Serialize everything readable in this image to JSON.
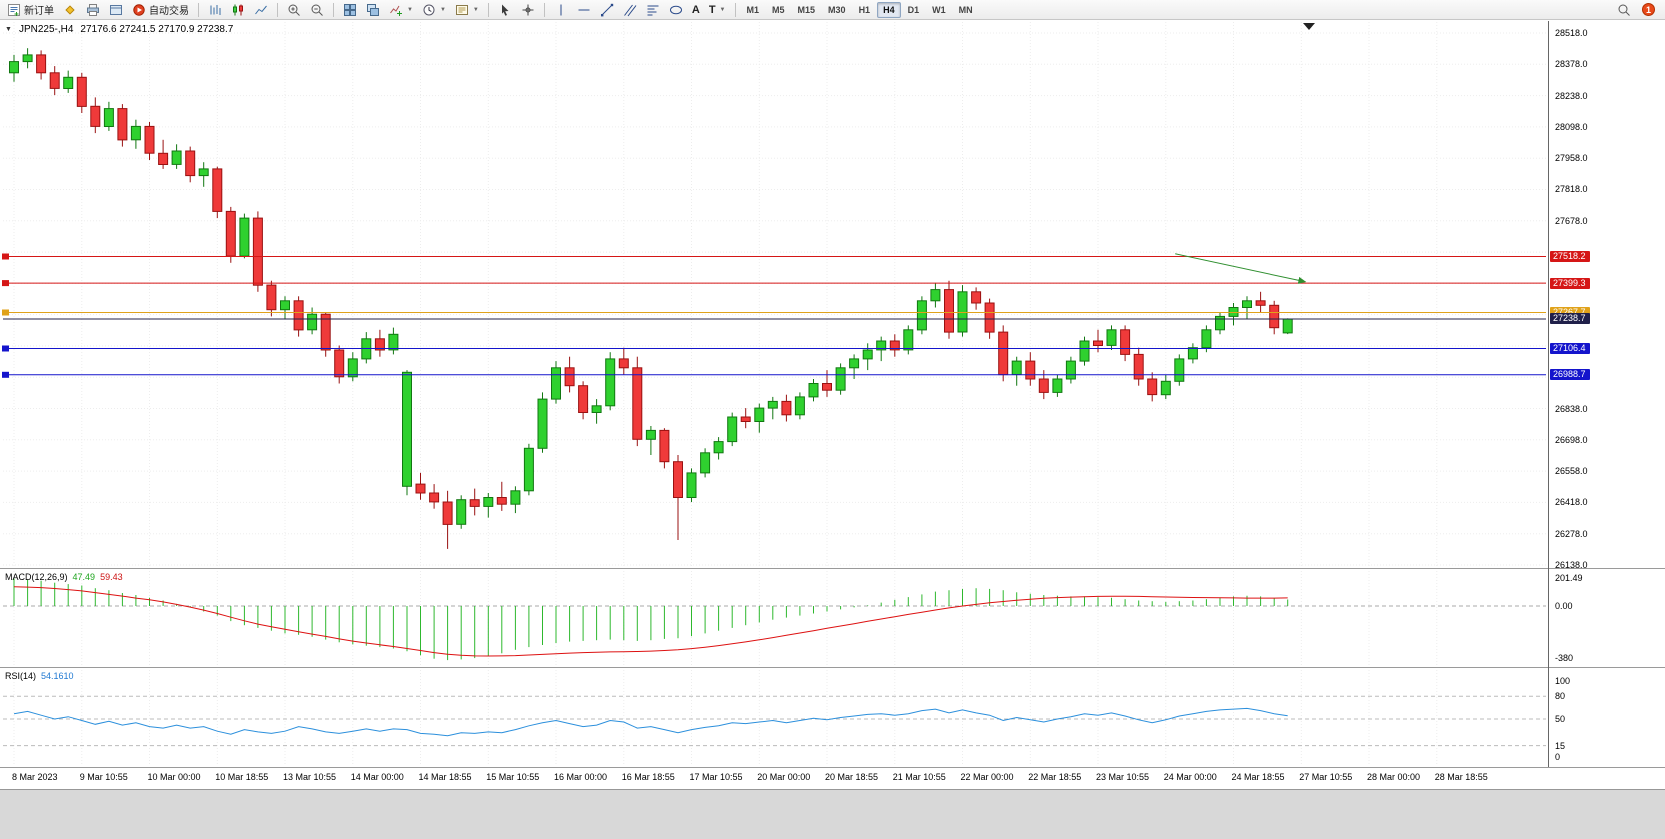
{
  "toolbar": {
    "new_order_label": "新订单",
    "auto_trading_label": "自动交易",
    "text_tool_label": "A",
    "arrows_tool_label": "T",
    "timeframes": [
      "M1",
      "M5",
      "M15",
      "M30",
      "H1",
      "H4",
      "D1",
      "W1",
      "MN"
    ],
    "active_timeframe": "H4",
    "notification_count": "1"
  },
  "chart": {
    "symbol_period": "JPN225-,H4",
    "ohlc": "27176.6 27241.5 27170.9 27238.7"
  },
  "indicators": {
    "macd": {
      "label": "MACD(12,26,9)",
      "value_main": "47.49",
      "value_signal": "59.43",
      "scale": [
        {
          "text": "201.49",
          "value": 201.49
        },
        {
          "text": "0.00",
          "value": 0
        },
        {
          "text": "-380",
          "value": -380
        }
      ]
    },
    "rsi": {
      "label": "RSI(14)",
      "value": "54.1610",
      "scale": [
        {
          "text": "100",
          "value": 100
        },
        {
          "text": "80",
          "value": 80
        },
        {
          "text": "50",
          "value": 50
        },
        {
          "text": "15",
          "value": 15
        },
        {
          "text": "0",
          "value": 0
        }
      ]
    }
  },
  "price_scale": {
    "plain": [
      28518.0,
      28378.0,
      28238.0,
      28098.0,
      27958.0,
      27818.0,
      27678.0,
      26838.0,
      26698.0,
      26558.0,
      26418.0,
      26278.0,
      26138.0
    ],
    "badges": [
      {
        "value": "27518.2",
        "price": 27518.2,
        "color": "#d51616"
      },
      {
        "value": "27399.3",
        "price": 27399.3,
        "color": "#d51616"
      },
      {
        "value": "27267.7",
        "price": 27267.7,
        "color": "#e0a21a"
      },
      {
        "value": "27238.7",
        "price": 27238.7,
        "color": "#20204a"
      },
      {
        "value": "27106.4",
        "price": 27106.4,
        "color": "#1414cc"
      },
      {
        "value": "26988.7",
        "price": 26988.7,
        "color": "#1414cc"
      }
    ]
  },
  "time_axis": {
    "labels": [
      {
        "text": "8 Mar 2023",
        "ci": 0
      },
      {
        "text": "9 Mar 10:55",
        "ci": 5
      },
      {
        "text": "10 Mar 00:00",
        "ci": 10
      },
      {
        "text": "10 Mar 18:55",
        "ci": 15
      },
      {
        "text": "13 Mar 10:55",
        "ci": 20
      },
      {
        "text": "14 Mar 00:00",
        "ci": 25
      },
      {
        "text": "14 Mar 18:55",
        "ci": 30
      },
      {
        "text": "15 Mar 10:55",
        "ci": 35
      },
      {
        "text": "16 Mar 00:00",
        "ci": 40
      },
      {
        "text": "16 Mar 18:55",
        "ci": 45
      },
      {
        "text": "17 Mar 10:55",
        "ci": 50
      },
      {
        "text": "20 Mar 00:00",
        "ci": 55
      },
      {
        "text": "20 Mar 18:55",
        "ci": 60
      },
      {
        "text": "21 Mar 10:55",
        "ci": 65
      },
      {
        "text": "22 Mar 00:00",
        "ci": 70
      },
      {
        "text": "22 Mar 18:55",
        "ci": 75
      },
      {
        "text": "23 Mar 10:55",
        "ci": 80
      },
      {
        "text": "24 Mar 00:00",
        "ci": 85
      },
      {
        "text": "24 Mar 18:55",
        "ci": 90
      },
      {
        "text": "27 Mar 10:55",
        "ci": 95
      },
      {
        "text": "28 Mar 00:00",
        "ci": 100
      },
      {
        "text": "28 Mar 18:55",
        "ci": 105
      }
    ]
  },
  "chart_data": [
    {
      "type": "candlestick",
      "symbol": "JPN225-",
      "timeframe": "H4",
      "last_ohlc": {
        "open": 27176.6,
        "high": 27241.5,
        "low": 27170.9,
        "close": 27238.7
      },
      "ylim": [
        26138,
        28560
      ],
      "grid": {
        "min": 26138,
        "max": 28518,
        "step": 140
      },
      "hlines": [
        {
          "price": 27518.2,
          "color": "#d51616",
          "width": 1,
          "marker": true
        },
        {
          "price": 27399.3,
          "color": "#d51616",
          "width": 1,
          "marker": true
        },
        {
          "price": 27267.7,
          "color": "#e0a21a",
          "width": 2,
          "marker": true
        },
        {
          "price": 27238.7,
          "color": "#20204a",
          "width": 1,
          "marker": false
        },
        {
          "price": 27106.4,
          "color": "#1414cc",
          "width": 2,
          "marker": true
        },
        {
          "price": 26988.7,
          "color": "#1414cc",
          "width": 2,
          "marker": true
        }
      ],
      "arrow": {
        "from_ci": 85.7,
        "from_price": 27530,
        "to_ci": 95.3,
        "to_price": 27405,
        "color": "#2f8f2f"
      },
      "candles": [
        [
          28340,
          28420,
          28300,
          28390
        ],
        [
          28390,
          28450,
          28360,
          28420
        ],
        [
          28420,
          28440,
          28310,
          28340
        ],
        [
          28340,
          28370,
          28240,
          28270
        ],
        [
          28270,
          28350,
          28250,
          28320
        ],
        [
          28320,
          28340,
          28160,
          28190
        ],
        [
          28190,
          28230,
          28070,
          28100
        ],
        [
          28100,
          28210,
          28080,
          28180
        ],
        [
          28180,
          28200,
          28010,
          28040
        ],
        [
          28040,
          28130,
          28000,
          28100
        ],
        [
          28100,
          28120,
          27950,
          27980
        ],
        [
          27980,
          28040,
          27910,
          27930
        ],
        [
          27930,
          28020,
          27910,
          27990
        ],
        [
          27990,
          28010,
          27850,
          27880
        ],
        [
          27880,
          27940,
          27830,
          27910
        ],
        [
          27910,
          27920,
          27690,
          27720
        ],
        [
          27720,
          27740,
          27490,
          27520
        ],
        [
          27520,
          27710,
          27510,
          27690
        ],
        [
          27690,
          27720,
          27360,
          27390
        ],
        [
          27390,
          27410,
          27250,
          27280
        ],
        [
          27280,
          27340,
          27240,
          27320
        ],
        [
          27320,
          27340,
          27160,
          27190
        ],
        [
          27190,
          27290,
          27170,
          27260
        ],
        [
          27260,
          27270,
          27070,
          27100
        ],
        [
          27100,
          27120,
          26950,
          26980
        ],
        [
          26980,
          27090,
          26960,
          27060
        ],
        [
          27060,
          27180,
          27040,
          27150
        ],
        [
          27150,
          27190,
          27070,
          27100
        ],
        [
          27100,
          27200,
          27080,
          27170
        ],
        [
          26490,
          27010,
          26450,
          27000
        ],
        [
          26500,
          26550,
          26430,
          26460
        ],
        [
          26460,
          26500,
          26390,
          26420
        ],
        [
          26420,
          26470,
          26210,
          26320
        ],
        [
          26320,
          26450,
          26300,
          26430
        ],
        [
          26430,
          26480,
          26360,
          26400
        ],
        [
          26400,
          26460,
          26350,
          26440
        ],
        [
          26440,
          26510,
          26380,
          26410
        ],
        [
          26410,
          26490,
          26370,
          26470
        ],
        [
          26470,
          26680,
          26450,
          26660
        ],
        [
          26660,
          26910,
          26640,
          26880
        ],
        [
          26880,
          27050,
          26860,
          27020
        ],
        [
          27020,
          27070,
          26910,
          26940
        ],
        [
          26940,
          26960,
          26790,
          26820
        ],
        [
          26820,
          26880,
          26770,
          26850
        ],
        [
          26850,
          27090,
          26830,
          27060
        ],
        [
          27060,
          27110,
          26990,
          27020
        ],
        [
          27020,
          27070,
          26670,
          26700
        ],
        [
          26700,
          26760,
          26630,
          26740
        ],
        [
          26740,
          26750,
          26570,
          26600
        ],
        [
          26600,
          26630,
          26250,
          26440
        ],
        [
          26440,
          26570,
          26420,
          26550
        ],
        [
          26550,
          26660,
          26530,
          26640
        ],
        [
          26640,
          26710,
          26610,
          26690
        ],
        [
          26690,
          26820,
          26670,
          26800
        ],
        [
          26800,
          26840,
          26750,
          26780
        ],
        [
          26780,
          26860,
          26730,
          26840
        ],
        [
          26840,
          26890,
          26790,
          26870
        ],
        [
          26870,
          26900,
          26780,
          26810
        ],
        [
          26810,
          26910,
          26790,
          26890
        ],
        [
          26890,
          26970,
          26870,
          26950
        ],
        [
          26950,
          27010,
          26890,
          26920
        ],
        [
          26920,
          27040,
          26900,
          27020
        ],
        [
          27020,
          27080,
          26970,
          27060
        ],
        [
          27060,
          27130,
          27010,
          27100
        ],
        [
          27100,
          27160,
          27050,
          27140
        ],
        [
          27140,
          27170,
          27070,
          27100
        ],
        [
          27100,
          27210,
          27080,
          27190
        ],
        [
          27190,
          27340,
          27170,
          27320
        ],
        [
          27320,
          27400,
          27290,
          27370
        ],
        [
          27370,
          27410,
          27150,
          27180
        ],
        [
          27180,
          27390,
          27160,
          27360
        ],
        [
          27360,
          27380,
          27280,
          27310
        ],
        [
          27310,
          27330,
          27150,
          27180
        ],
        [
          27180,
          27210,
          26960,
          26990
        ],
        [
          26990,
          27070,
          26940,
          27050
        ],
        [
          27050,
          27090,
          26940,
          26970
        ],
        [
          26970,
          27010,
          26880,
          26910
        ],
        [
          26910,
          26990,
          26890,
          26970
        ],
        [
          26970,
          27070,
          26950,
          27050
        ],
        [
          27050,
          27160,
          27030,
          27140
        ],
        [
          27140,
          27190,
          27090,
          27120
        ],
        [
          27120,
          27210,
          27100,
          27190
        ],
        [
          27190,
          27210,
          27050,
          27080
        ],
        [
          27080,
          27110,
          26940,
          26970
        ],
        [
          26970,
          27000,
          26870,
          26900
        ],
        [
          26900,
          26990,
          26880,
          26960
        ],
        [
          26960,
          27080,
          26940,
          27060
        ],
        [
          27060,
          27130,
          27040,
          27110
        ],
        [
          27110,
          27210,
          27090,
          27190
        ],
        [
          27190,
          27270,
          27170,
          27250
        ],
        [
          27250,
          27310,
          27210,
          27290
        ],
        [
          27290,
          27340,
          27240,
          27320
        ],
        [
          27320,
          27360,
          27270,
          27300
        ],
        [
          27300,
          27320,
          27170,
          27200
        ],
        [
          27176.6,
          27241.5,
          27170.9,
          27238.7
        ]
      ]
    },
    {
      "type": "bar",
      "name": "MACD(12,26,9)",
      "current_macd": 47.49,
      "current_signal": 59.43,
      "ylim": [
        -420,
        215
      ],
      "levels": [
        0
      ],
      "values": [
        200,
        195,
        185,
        170,
        160,
        150,
        130,
        115,
        95,
        80,
        60,
        40,
        15,
        -10,
        -40,
        -70,
        -110,
        -140,
        -160,
        -180,
        -200,
        -210,
        -225,
        -245,
        -265,
        -280,
        -290,
        -300,
        -310,
        -330,
        -360,
        -385,
        -395,
        -390,
        -380,
        -365,
        -345,
        -320,
        -300,
        -285,
        -270,
        -260,
        -255,
        -250,
        -245,
        -250,
        -255,
        -250,
        -240,
        -235,
        -220,
        -200,
        -180,
        -160,
        -140,
        -120,
        -100,
        -85,
        -70,
        -55,
        -40,
        -25,
        -10,
        5,
        25,
        45,
        65,
        85,
        105,
        115,
        125,
        130,
        125,
        115,
        100,
        90,
        80,
        75,
        70,
        70,
        65,
        60,
        50,
        40,
        35,
        30,
        35,
        40,
        50,
        60,
        70,
        75,
        70,
        55,
        47.49
      ],
      "signal": [
        140,
        138,
        134,
        128,
        120,
        110,
        98,
        85,
        72,
        58,
        45,
        30,
        12,
        -8,
        -30,
        -55,
        -82,
        -108,
        -132,
        -152,
        -170,
        -188,
        -205,
        -222,
        -240,
        -256,
        -270,
        -283,
        -296,
        -310,
        -325,
        -340,
        -352,
        -360,
        -364,
        -365,
        -364,
        -362,
        -358,
        -353,
        -348,
        -344,
        -340,
        -337,
        -335,
        -334,
        -332,
        -329,
        -325,
        -319,
        -311,
        -301,
        -289,
        -276,
        -262,
        -247,
        -231,
        -214,
        -197,
        -180,
        -163,
        -146,
        -129,
        -112,
        -95,
        -78,
        -61,
        -45,
        -29,
        -14,
        0,
        12,
        23,
        33,
        42,
        50,
        56,
        61,
        65,
        68,
        70,
        71,
        71,
        70,
        68,
        66,
        64,
        62,
        61,
        60,
        59,
        58,
        58,
        58,
        59.43
      ]
    },
    {
      "type": "line",
      "name": "RSI(14)",
      "current": 54.161,
      "ylim": [
        0,
        100
      ],
      "levels": [
        80,
        50,
        15
      ],
      "values": [
        57,
        60,
        55,
        50,
        53,
        48,
        43,
        47,
        42,
        45,
        40,
        38,
        42,
        38,
        40,
        34,
        30,
        36,
        33,
        31,
        34,
        40,
        37,
        33,
        31,
        34,
        37,
        34,
        37,
        36,
        31,
        30,
        28,
        32,
        31,
        33,
        32,
        36,
        41,
        45,
        48,
        44,
        40,
        42,
        48,
        46,
        38,
        40,
        36,
        32,
        36,
        39,
        41,
        45,
        44,
        46,
        48,
        45,
        48,
        51,
        49,
        52,
        54,
        56,
        57,
        55,
        57,
        61,
        63,
        58,
        62,
        58,
        55,
        48,
        52,
        49,
        46,
        50,
        53,
        57,
        55,
        58,
        54,
        49,
        45,
        49,
        54,
        57,
        60,
        62,
        63,
        64,
        61,
        57,
        54.16
      ]
    }
  ]
}
